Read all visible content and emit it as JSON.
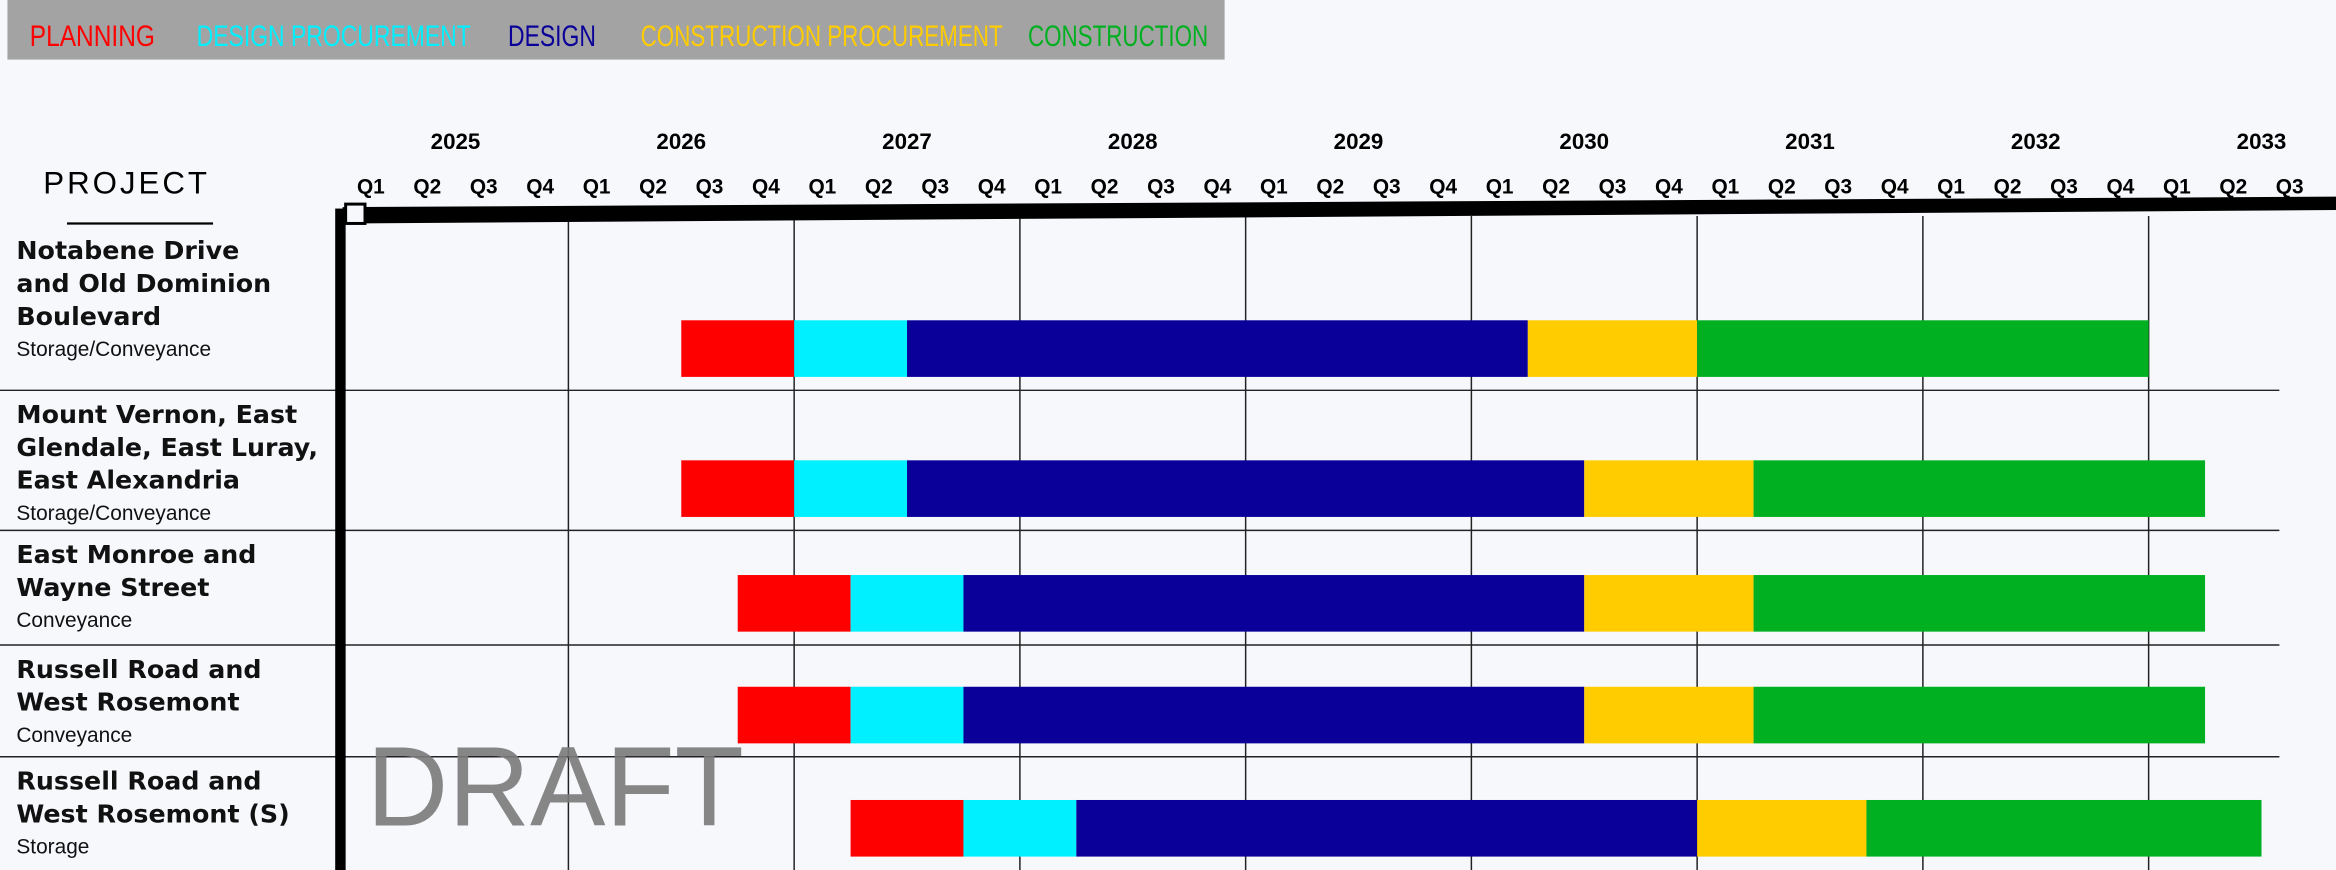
{
  "chart_data": {
    "type": "gantt",
    "axis_label": "PROJECT",
    "watermark": "DRAFT",
    "xlim": [
      2025,
      2033.83
    ],
    "xticks": [
      2025,
      2026,
      2027,
      2028,
      2029,
      2030,
      2031,
      2032,
      2033
    ],
    "quarters": [
      "Q1",
      "Q2",
      "Q3",
      "Q4"
    ],
    "grid": true,
    "categories": [
      {
        "lines": [
          "Notabene Drive",
          "and Old Dominion",
          "Boulevard"
        ],
        "kind": "Storage/Conveyance"
      },
      {
        "lines": [
          "Mount Vernon, East",
          "Glendale, East Luray,",
          "East Alexandria"
        ],
        "kind": "Storage/Conveyance"
      },
      {
        "lines": [
          "East Monroe and",
          "Wayne Street"
        ],
        "kind": "Conveyance"
      },
      {
        "lines": [
          "Russell Road and",
          "West Rosemont"
        ],
        "kind": "Conveyance"
      },
      {
        "lines": [
          "Russell Road and",
          "West Rosemont (S)"
        ],
        "kind": "Storage"
      }
    ],
    "series": [
      {
        "name": "PLANNING",
        "color": "#ff0000",
        "start": [
          2026.5,
          2026.5,
          2026.75,
          2026.75,
          2027.25
        ],
        "end": [
          2027.0,
          2027.0,
          2027.25,
          2027.25,
          2027.75
        ]
      },
      {
        "name": "DESIGN PROCUREMENT",
        "color": "#00f0ff",
        "start": [
          2027.0,
          2027.0,
          2027.25,
          2027.25,
          2027.75
        ],
        "end": [
          2027.5,
          2027.5,
          2027.75,
          2027.75,
          2028.25
        ]
      },
      {
        "name": "DESIGN",
        "color": "#0a0099",
        "start": [
          2027.5,
          2027.5,
          2027.75,
          2027.75,
          2028.25
        ],
        "end": [
          2030.25,
          2030.5,
          2030.5,
          2030.5,
          2031.0
        ]
      },
      {
        "name": "CONSTRUCTION PROCUREMENT",
        "color": "#ffcc00",
        "start": [
          2030.25,
          2030.5,
          2030.5,
          2030.5,
          2031.0
        ],
        "end": [
          2031.0,
          2031.25,
          2031.25,
          2031.25,
          2031.75
        ]
      },
      {
        "name": "CONSTRUCTION",
        "color": "#00b020",
        "start": [
          2031.0,
          2031.25,
          2031.25,
          2031.25,
          2031.75
        ],
        "end": [
          2033.0,
          2033.25,
          2033.25,
          2033.25,
          2033.5
        ]
      }
    ]
  }
}
